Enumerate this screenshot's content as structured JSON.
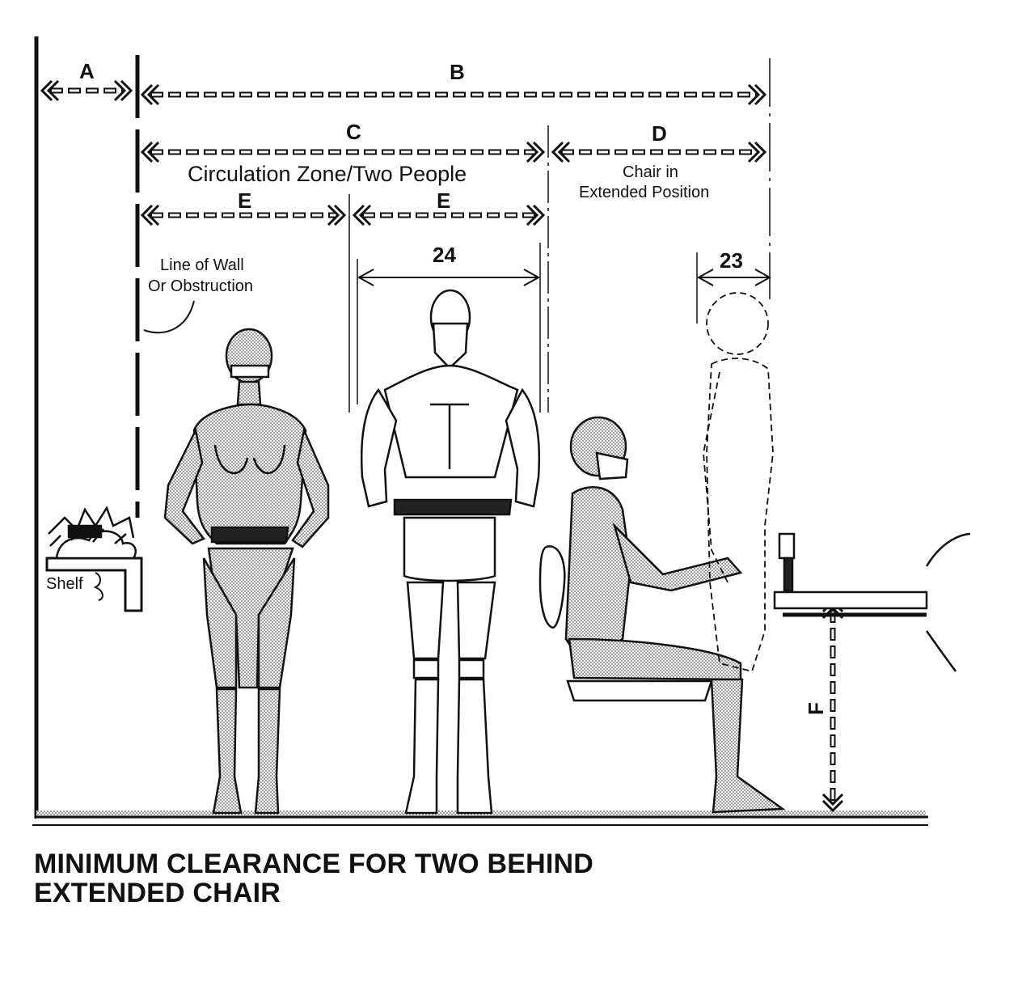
{
  "labels": {
    "a": "A",
    "b": "B",
    "c": "C",
    "d": "D",
    "e1": "E",
    "e2": "E",
    "f": "F",
    "dim_24": "24",
    "dim_23": "23",
    "circulation": "Circulation Zone/Two People",
    "chair_line1": "Chair in",
    "chair_line2": "Extended Position",
    "wall_line1": "Line of Wall",
    "wall_line2": "Or Obstruction",
    "shelf": "Shelf"
  },
  "caption": {
    "line1": "MINIMUM CLEARANCE FOR TWO BEHIND",
    "line2": "EXTENDED CHAIR"
  },
  "colors": {
    "ink": "#111111",
    "stipple": "#c9c9c9",
    "background": "#ffffff"
  }
}
